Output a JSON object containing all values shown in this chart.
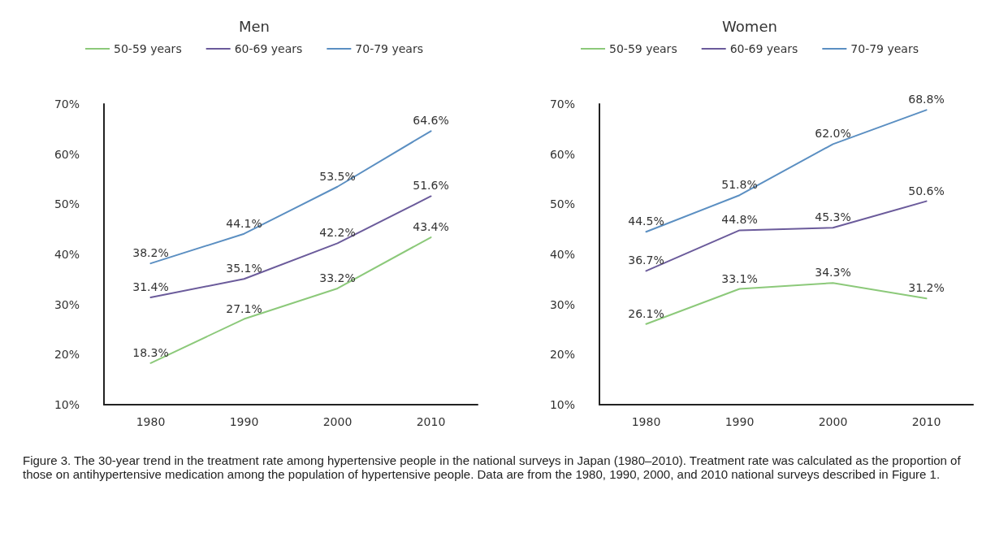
{
  "chart_data": [
    {
      "type": "line",
      "title": "Men",
      "categories": [
        "1980",
        "1990",
        "2000",
        "2010"
      ],
      "series": [
        {
          "name": "50-59 years",
          "color": "#8cc97a",
          "values": [
            18.3,
            27.1,
            33.2,
            43.4
          ],
          "value_labels": [
            "18.3%",
            "27.1%",
            "33.2%",
            "43.4%"
          ]
        },
        {
          "name": "60-69 years",
          "color": "#6b5b9b",
          "values": [
            31.4,
            35.1,
            42.2,
            51.6
          ],
          "value_labels": [
            "31.4%",
            "35.1%",
            "42.2%",
            "51.6%"
          ]
        },
        {
          "name": "70-79 years",
          "color": "#5b8fc2",
          "values": [
            38.2,
            44.1,
            53.5,
            64.6
          ],
          "value_labels": [
            "38.2%",
            "44.1%",
            "53.5%",
            "64.6%"
          ]
        }
      ],
      "ylim": [
        10,
        70
      ],
      "yticks": [
        {
          "value": 10,
          "label": "10%"
        },
        {
          "value": 20,
          "label": "20%"
        },
        {
          "value": 30,
          "label": "30%"
        },
        {
          "value": 40,
          "label": "40%"
        },
        {
          "value": 50,
          "label": "50%"
        },
        {
          "value": 60,
          "label": "60%"
        },
        {
          "value": 70,
          "label": "70%"
        }
      ],
      "grid": false,
      "legend": "top",
      "marker": "none",
      "line_style": "solid",
      "annotations": [
        "Figure 3.  The 30-year trend in the treatment rate among hypertensive people in the national surveys in Japan (1980–2010). Treatment rate was calculated as the proportion of those on antihypertensive medication among the population of hypertensive people. Data are from the 1980, 1990, 2000, and 2010 national surveys described in Figure 1."
      ]
    },
    {
      "type": "line",
      "title": "Women",
      "categories": [
        "1980",
        "1990",
        "2000",
        "2010"
      ],
      "series": [
        {
          "name": "50-59 years",
          "color": "#8cc97a",
          "values": [
            26.1,
            33.1,
            34.3,
            31.2
          ],
          "value_labels": [
            "26.1%",
            "33.1%",
            "34.3%",
            "31.2%"
          ]
        },
        {
          "name": "60-69 years",
          "color": "#6b5b9b",
          "values": [
            36.7,
            44.8,
            45.3,
            50.6
          ],
          "value_labels": [
            "36.7%",
            "44.8%",
            "45.3%",
            "50.6%"
          ]
        },
        {
          "name": "70-79 years",
          "color": "#5b8fc2",
          "values": [
            44.5,
            51.8,
            62.0,
            68.8
          ],
          "value_labels": [
            "44.5%",
            "51.8%",
            "62.0%",
            "68.8%"
          ]
        }
      ],
      "ylim": [
        10,
        70
      ],
      "yticks": [
        {
          "value": 10,
          "label": "10%"
        },
        {
          "value": 20,
          "label": "20%"
        },
        {
          "value": 30,
          "label": "30%"
        },
        {
          "value": 40,
          "label": "40%"
        },
        {
          "value": 50,
          "label": "50%"
        },
        {
          "value": 60,
          "label": "60%"
        },
        {
          "value": 70,
          "label": "70%"
        }
      ],
      "grid": false,
      "legend": "top",
      "marker": "none",
      "line_style": "solid"
    }
  ]
}
